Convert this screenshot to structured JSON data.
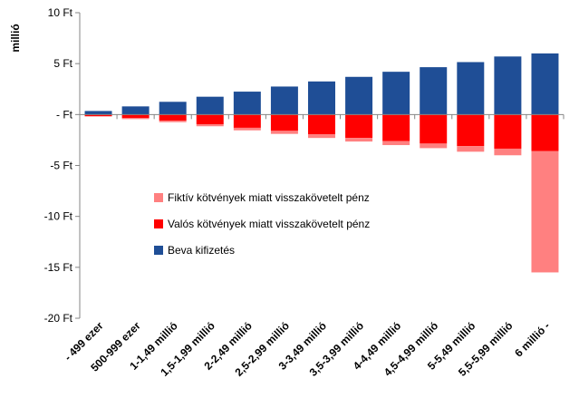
{
  "chart_data": {
    "type": "bar",
    "stacked": true,
    "ylabel": "millió",
    "ylim": [
      -20,
      10
    ],
    "y_ticks": [
      {
        "value": 10,
        "label": "10 Ft"
      },
      {
        "value": 5,
        "label": "5 Ft"
      },
      {
        "value": 0,
        "label": "- Ft"
      },
      {
        "value": -5,
        "label": "-5 Ft"
      },
      {
        "value": -10,
        "label": "-10 Ft"
      },
      {
        "value": -15,
        "label": "-15 Ft"
      },
      {
        "value": -20,
        "label": "-20 Ft"
      }
    ],
    "categories": [
      "- 499 ezer",
      "500-999 ezer",
      "1-1,49 millió",
      "1,5-1,99 millió",
      "2-2,49 millió",
      "2,5-2,99 millió",
      "3-3,49 millió",
      "3,5-3,99 millió",
      "4-4,49 millió",
      "4,5-4,99 millió",
      "5-5,49 millió",
      "5,5-5,99 millió",
      "6 millió -"
    ],
    "series": [
      {
        "name": "Beva kifizetés",
        "color": "#1F4E96",
        "values": [
          0.35,
          0.8,
          1.25,
          1.75,
          2.25,
          2.75,
          3.25,
          3.7,
          4.2,
          4.65,
          5.15,
          5.7,
          6.0
        ]
      },
      {
        "name": "Valós kötvények miatt visszakövetelt pénz",
        "color": "#FF0000",
        "values": [
          -0.15,
          -0.35,
          -0.6,
          -0.95,
          -1.3,
          -1.6,
          -1.95,
          -2.3,
          -2.6,
          -2.85,
          -3.1,
          -3.35,
          -3.6
        ]
      },
      {
        "name": "Fiktív kötvények miatt visszakövetelt pénz",
        "color": "#FF8080",
        "values": [
          -0.05,
          -0.1,
          -0.15,
          -0.2,
          -0.25,
          -0.3,
          -0.35,
          -0.35,
          -0.4,
          -0.45,
          -0.55,
          -0.65,
          -11.9
        ]
      }
    ],
    "legend": {
      "position": "bottom-left inside",
      "order": [
        "Fiktív kötvények miatt visszakövetelt pénz",
        "Valós kötvények miatt visszakövetelt pénz",
        "Beva kifizetés"
      ]
    },
    "grid": false
  }
}
